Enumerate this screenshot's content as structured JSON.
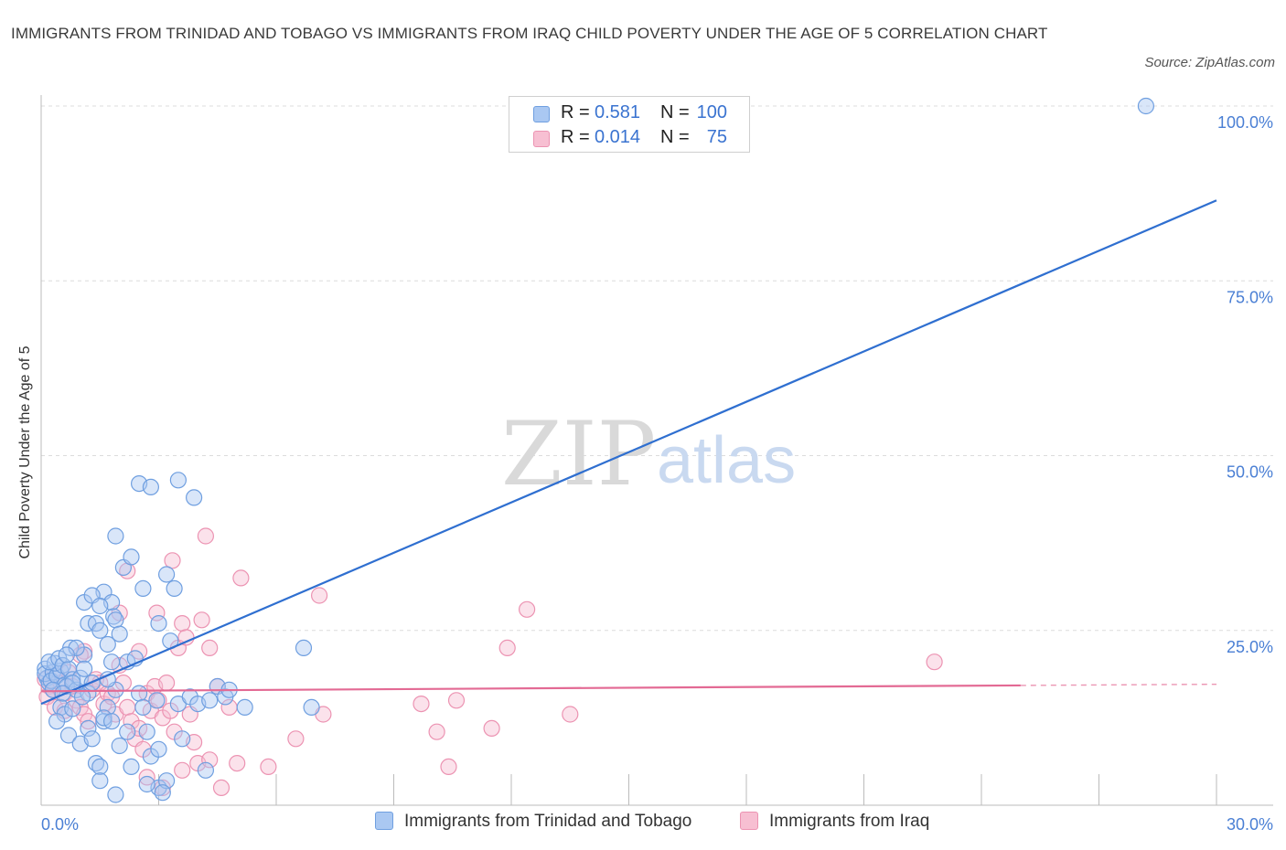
{
  "title": "IMMIGRANTS FROM TRINIDAD AND TOBAGO VS IMMIGRANTS FROM IRAQ CHILD POVERTY UNDER THE AGE OF 5 CORRELATION CHART",
  "source": "Source: ZipAtlas.com",
  "colors": {
    "blue_fill": "#aac8f2",
    "blue_stroke": "#6f9fe0",
    "blue_line": "#2f6fd0",
    "pink_fill": "#f7bfd2",
    "pink_stroke": "#ec93b2",
    "pink_line": "#e36a94",
    "accent_text": "#3a73d0"
  },
  "legend_top": {
    "r_label": "R =",
    "n_label": "N =",
    "rows": [
      {
        "r": "0.581",
        "n": "100",
        "color": "blue"
      },
      {
        "r": "0.014",
        "n": "75",
        "color": "pink"
      }
    ]
  },
  "legend_bottom": [
    {
      "label": "Immigrants from Trinidad and Tobago",
      "color": "blue"
    },
    {
      "label": "Immigrants from Iraq",
      "color": "pink"
    }
  ],
  "watermark": {
    "zip": "ZIP",
    "atlas": "atlas"
  },
  "chart_data": {
    "type": "scatter",
    "title": "IMMIGRANTS FROM TRINIDAD AND TOBAGO VS IMMIGRANTS FROM IRAQ CHILD POVERTY UNDER THE AGE OF 5 CORRELATION CHART",
    "xlabel": "",
    "ylabel": "Child Poverty Under the Age of 5",
    "xlim": [
      0,
      30
    ],
    "ylim": [
      0,
      100
    ],
    "x_tick_labels": [
      {
        "value": 0,
        "label": "0.0%"
      },
      {
        "value": 30,
        "label": "30.0%"
      }
    ],
    "y_tick_labels": [
      {
        "value": 25,
        "label": "25.0%"
      },
      {
        "value": 50,
        "label": "50.0%"
      },
      {
        "value": 75,
        "label": "75.0%"
      },
      {
        "value": 100,
        "label": "100.0%"
      }
    ],
    "series": [
      {
        "name": "Immigrants from Trinidad and Tobago",
        "color": "blue",
        "R": 0.581,
        "N": 100,
        "trend": {
          "x0": 0.0,
          "y0": 14.5,
          "x1": 30.0,
          "y1": 86.5,
          "dashed_from": null
        },
        "points": [
          [
            0.1,
            19.5
          ],
          [
            0.15,
            18.2
          ],
          [
            0.2,
            17.5
          ],
          [
            0.1,
            18.8
          ],
          [
            0.3,
            19.0
          ],
          [
            0.25,
            17.8
          ],
          [
            0.4,
            18.5
          ],
          [
            0.5,
            19.2
          ],
          [
            0.35,
            20.3
          ],
          [
            0.6,
            17.2
          ],
          [
            0.2,
            20.5
          ],
          [
            0.45,
            21.0
          ],
          [
            0.55,
            20.0
          ],
          [
            0.7,
            19.5
          ],
          [
            0.8,
            18.0
          ],
          [
            0.65,
            17.0
          ],
          [
            0.9,
            16.5
          ],
          [
            1.0,
            18.2
          ],
          [
            0.75,
            22.5
          ],
          [
            1.1,
            21.5
          ],
          [
            0.5,
            14.0
          ],
          [
            0.6,
            13.0
          ],
          [
            0.8,
            13.8
          ],
          [
            0.7,
            10.0
          ],
          [
            1.2,
            11.0
          ],
          [
            1.0,
            8.8
          ],
          [
            1.3,
            9.5
          ],
          [
            1.4,
            6.0
          ],
          [
            1.5,
            5.5
          ],
          [
            1.7,
            14.0
          ],
          [
            1.6,
            12.0
          ],
          [
            1.9,
            16.5
          ],
          [
            2.0,
            8.5
          ],
          [
            2.2,
            10.5
          ],
          [
            2.3,
            5.5
          ],
          [
            2.5,
            16.0
          ],
          [
            2.6,
            14.0
          ],
          [
            2.8,
            7.0
          ],
          [
            2.7,
            10.5
          ],
          [
            3.0,
            2.5
          ],
          [
            3.2,
            3.5
          ],
          [
            3.5,
            14.5
          ],
          [
            3.6,
            9.5
          ],
          [
            3.8,
            15.5
          ],
          [
            4.0,
            14.5
          ],
          [
            4.3,
            15.0
          ],
          [
            4.5,
            17.0
          ],
          [
            4.2,
            5.0
          ],
          [
            4.7,
            15.5
          ],
          [
            5.2,
            14.0
          ],
          [
            1.1,
            29.0
          ],
          [
            1.2,
            26.0
          ],
          [
            1.4,
            26.0
          ],
          [
            1.5,
            25.0
          ],
          [
            1.6,
            30.5
          ],
          [
            1.7,
            23.0
          ],
          [
            1.8,
            29.0
          ],
          [
            1.85,
            27.0
          ],
          [
            1.9,
            26.5
          ],
          [
            2.0,
            24.5
          ],
          [
            1.3,
            30.0
          ],
          [
            1.5,
            28.5
          ],
          [
            2.1,
            34.0
          ],
          [
            1.9,
            38.5
          ],
          [
            2.3,
            35.5
          ],
          [
            2.6,
            31.0
          ],
          [
            2.5,
            46.0
          ],
          [
            2.8,
            45.5
          ],
          [
            3.0,
            26.0
          ],
          [
            3.2,
            33.0
          ],
          [
            3.5,
            46.5
          ],
          [
            3.9,
            44.0
          ],
          [
            3.4,
            31.0
          ],
          [
            3.3,
            23.5
          ],
          [
            2.2,
            20.5
          ],
          [
            1.8,
            20.5
          ],
          [
            2.4,
            21.0
          ],
          [
            0.9,
            22.5
          ],
          [
            1.1,
            19.5
          ],
          [
            1.2,
            16.0
          ],
          [
            1.3,
            17.5
          ],
          [
            0.4,
            12.0
          ],
          [
            0.8,
            17.5
          ],
          [
            1.6,
            12.5
          ],
          [
            1.8,
            12.0
          ],
          [
            1.5,
            3.5
          ],
          [
            1.9,
            1.5
          ],
          [
            2.7,
            3.0
          ],
          [
            3.1,
            1.8
          ],
          [
            3.0,
            8.0
          ],
          [
            4.8,
            16.5
          ],
          [
            6.7,
            22.5
          ],
          [
            6.9,
            14.0
          ],
          [
            1.7,
            18.0
          ],
          [
            0.3,
            16.5
          ],
          [
            0.55,
            16.0
          ],
          [
            2.95,
            15.0
          ],
          [
            1.05,
            15.5
          ],
          [
            28.2,
            100.0
          ],
          [
            0.65,
            21.5
          ]
        ]
      },
      {
        "name": "Immigrants from Iraq",
        "color": "pink",
        "R": 0.014,
        "N": 75,
        "trend": {
          "x0": 0.0,
          "y0": 16.3,
          "x1": 30.0,
          "y1": 17.3,
          "dashed_from": 25.0
        },
        "points": [
          [
            0.1,
            18.0
          ],
          [
            0.2,
            17.0
          ],
          [
            0.3,
            16.5
          ],
          [
            0.15,
            15.5
          ],
          [
            0.4,
            18.5
          ],
          [
            0.5,
            17.5
          ],
          [
            0.6,
            16.0
          ],
          [
            0.35,
            14.0
          ],
          [
            0.7,
            19.0
          ],
          [
            0.8,
            17.0
          ],
          [
            0.9,
            15.0
          ],
          [
            1.0,
            14.0
          ],
          [
            1.1,
            13.0
          ],
          [
            1.2,
            12.0
          ],
          [
            1.3,
            16.5
          ],
          [
            1.4,
            18.0
          ],
          [
            1.5,
            17.5
          ],
          [
            1.6,
            14.5
          ],
          [
            1.7,
            16.0
          ],
          [
            1.8,
            15.5
          ],
          [
            1.9,
            13.0
          ],
          [
            2.0,
            20.0
          ],
          [
            2.1,
            17.5
          ],
          [
            2.2,
            14.0
          ],
          [
            2.3,
            12.0
          ],
          [
            2.4,
            9.5
          ],
          [
            2.5,
            11.0
          ],
          [
            2.6,
            8.0
          ],
          [
            2.7,
            16.0
          ],
          [
            2.8,
            13.5
          ],
          [
            2.9,
            17.0
          ],
          [
            3.0,
            15.0
          ],
          [
            3.1,
            12.5
          ],
          [
            3.2,
            17.5
          ],
          [
            3.3,
            13.5
          ],
          [
            3.4,
            10.5
          ],
          [
            3.5,
            22.5
          ],
          [
            3.6,
            26.0
          ],
          [
            3.7,
            24.0
          ],
          [
            3.8,
            13.0
          ],
          [
            3.9,
            9.0
          ],
          [
            4.1,
            26.5
          ],
          [
            4.3,
            22.5
          ],
          [
            4.0,
            6.0
          ],
          [
            4.5,
            17.0
          ],
          [
            4.8,
            14.0
          ],
          [
            5.0,
            6.0
          ],
          [
            2.0,
            27.5
          ],
          [
            2.2,
            33.5
          ],
          [
            2.5,
            22.0
          ],
          [
            2.95,
            27.5
          ],
          [
            3.35,
            35.0
          ],
          [
            4.2,
            38.5
          ],
          [
            4.3,
            6.5
          ],
          [
            5.1,
            32.5
          ],
          [
            5.8,
            5.5
          ],
          [
            6.5,
            9.5
          ],
          [
            7.1,
            30.0
          ],
          [
            7.2,
            13.0
          ],
          [
            9.7,
            14.5
          ],
          [
            10.1,
            10.5
          ],
          [
            10.4,
            5.5
          ],
          [
            10.6,
            15.0
          ],
          [
            11.5,
            11.0
          ],
          [
            11.9,
            22.5
          ],
          [
            12.4,
            28.0
          ],
          [
            13.5,
            13.0
          ],
          [
            22.8,
            20.5
          ],
          [
            1.1,
            22.0
          ],
          [
            0.6,
            13.5
          ],
          [
            1.0,
            21.5
          ],
          [
            3.6,
            5.0
          ],
          [
            3.1,
            2.5
          ],
          [
            2.7,
            4.0
          ],
          [
            4.6,
            2.5
          ]
        ]
      }
    ]
  }
}
